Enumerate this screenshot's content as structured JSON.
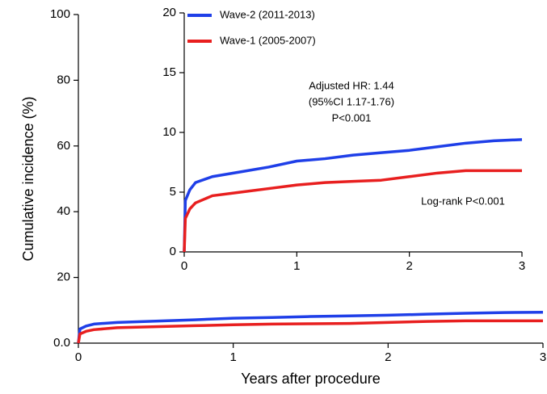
{
  "chart_data": [
    {
      "type": "line",
      "x_label": "Years after procedure",
      "y_label": "Cumulative incidence (%)",
      "xlim": [
        0,
        3
      ],
      "xticks": [
        0,
        1,
        2,
        3
      ],
      "ylim": [
        0,
        100
      ],
      "yticks": [
        {
          "value": 0,
          "label": "0.0"
        },
        20,
        40,
        60,
        80,
        100
      ],
      "x": [
        0,
        0.01,
        0.05,
        0.1,
        0.25,
        0.5,
        0.75,
        1.0,
        1.25,
        1.5,
        1.75,
        2.0,
        2.25,
        2.5,
        2.75,
        3.0
      ],
      "series": [
        {
          "color": "#1f3fe8",
          "values": [
            0,
            4.3,
            5.2,
            5.8,
            6.3,
            6.7,
            7.1,
            7.6,
            7.8,
            8.1,
            8.3,
            8.5,
            8.8,
            9.1,
            9.3,
            9.4
          ]
        },
        {
          "color": "#e81f1f",
          "values": [
            0,
            2.8,
            3.6,
            4.1,
            4.7,
            5.0,
            5.3,
            5.6,
            5.8,
            5.9,
            6.0,
            6.3,
            6.6,
            6.8,
            6.8,
            6.8
          ]
        }
      ]
    },
    {
      "type": "line",
      "xlim": [
        0,
        3
      ],
      "xticks": [
        0,
        1,
        2,
        3
      ],
      "ylim": [
        0,
        20
      ],
      "yticks": [
        0,
        5,
        10,
        15,
        20
      ],
      "x": [
        0,
        0.01,
        0.05,
        0.1,
        0.25,
        0.5,
        0.75,
        1.0,
        1.25,
        1.5,
        1.75,
        2.0,
        2.25,
        2.5,
        2.75,
        3.0
      ],
      "series": [
        {
          "name": "Wave-2 (2011-2013)",
          "color": "#1f3fe8",
          "values": [
            0,
            4.3,
            5.2,
            5.8,
            6.3,
            6.7,
            7.1,
            7.6,
            7.8,
            8.1,
            8.3,
            8.5,
            8.8,
            9.1,
            9.3,
            9.4
          ]
        },
        {
          "name": "Wave-1 (2005-2007)",
          "color": "#e81f1f",
          "values": [
            0,
            2.8,
            3.6,
            4.1,
            4.7,
            5.0,
            5.3,
            5.6,
            5.8,
            5.9,
            6.0,
            6.3,
            6.6,
            6.8,
            6.8,
            6.8
          ]
        }
      ],
      "annotations": [
        "Adjusted HR: 1.44",
        "(95%CI 1.17-1.76)",
        "P<0.001",
        "Log-rank P<0.001"
      ]
    }
  ]
}
